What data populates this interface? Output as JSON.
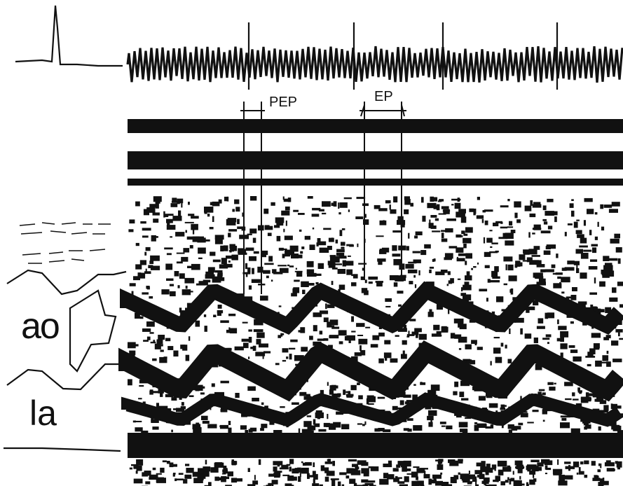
{
  "intervals": {
    "pep_label": "PEP",
    "ep_label": "EP"
  },
  "labels": {
    "aorta": "ao",
    "left_atrium": "la"
  },
  "colors": {
    "ink": "#111111",
    "paper": "#ffffff"
  }
}
